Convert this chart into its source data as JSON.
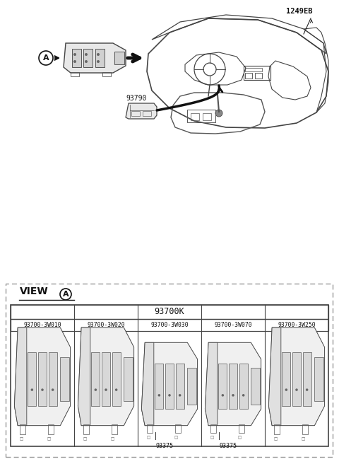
{
  "bg_color": "#ffffff",
  "fig_width": 4.8,
  "fig_height": 6.56,
  "dpi": 100,
  "top_section": {
    "label_1249EB": "1249EB",
    "label_93790": "93790",
    "circle_A_label": "A"
  },
  "bottom_section": {
    "view_label": "VIEW",
    "view_circle": "A",
    "table_header": "93700K",
    "columns": [
      "93700-3W010",
      "93700-3W020",
      "93700-3W030",
      "93700-3W070",
      "93700-3W250"
    ],
    "sub_labels": [
      "",
      "",
      "93375",
      "93375",
      ""
    ],
    "outer_box_color": "#888888",
    "inner_box_color": "#444444"
  }
}
